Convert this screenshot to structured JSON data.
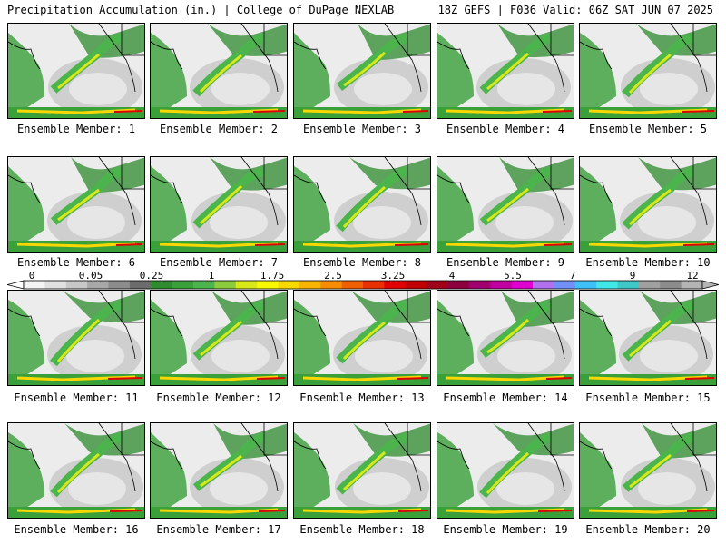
{
  "header": {
    "left": "Precipitation Accumulation (in.) | College of DuPage NEXLAB",
    "right": "18Z GEFS | F036 Valid: 06Z SAT JUN 07 2025"
  },
  "members": [
    "Ensemble Member: 1",
    "Ensemble Member: 2",
    "Ensemble Member: 3",
    "Ensemble Member: 4",
    "Ensemble Member: 5",
    "Ensemble Member: 6",
    "Ensemble Member: 7",
    "Ensemble Member: 8",
    "Ensemble Member: 9",
    "Ensemble Member: 10",
    "Ensemble Member: 11",
    "Ensemble Member: 12",
    "Ensemble Member: 13",
    "Ensemble Member: 14",
    "Ensemble Member: 15",
    "Ensemble Member: 16",
    "Ensemble Member: 17",
    "Ensemble Member: 18",
    "Ensemble Member: 19",
    "Ensemble Member: 20"
  ],
  "colorbar": {
    "ticks": [
      "0",
      "0.05",
      "0.25",
      "1",
      "1.75",
      "2.5",
      "3.25",
      "4",
      "5.5",
      "7",
      "9",
      "12"
    ],
    "colors": [
      "#f4f4f4",
      "#e0e0e0",
      "#c8c8c8",
      "#a8a8a8",
      "#8c8c8c",
      "#6c6c6c",
      "#2e8b2e",
      "#3aa03a",
      "#4cb44c",
      "#8ccc3c",
      "#d8e818",
      "#f8f800",
      "#f8d800",
      "#f8b400",
      "#f88c00",
      "#f06000",
      "#e83000",
      "#e00000",
      "#c00000",
      "#a00018",
      "#8c0040",
      "#a00070",
      "#c000a0",
      "#e000d0",
      "#b070f0",
      "#7090f8",
      "#40c0f8",
      "#40e8e8",
      "#40c8c8",
      "#a0a0a0",
      "#8c8c8c",
      "#b4b4b4"
    ]
  }
}
